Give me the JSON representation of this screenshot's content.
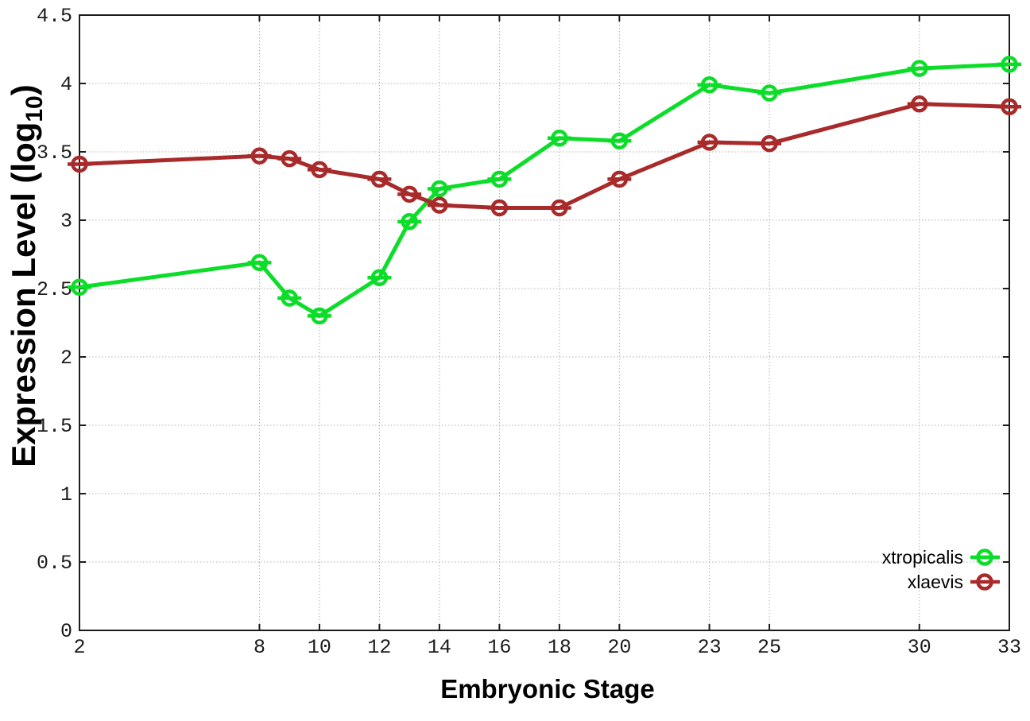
{
  "chart_data": {
    "type": "line",
    "title": "",
    "xlabel": "Embryonic Stage",
    "ylabel": "Expression Level (log10)",
    "ylabel_parts": {
      "base": "Expression Level (log",
      "subscript": "10",
      "suffix": ")"
    },
    "xlim": [
      2,
      33
    ],
    "ylim": [
      0,
      4.5
    ],
    "grid": true,
    "legend_position": "inside-bottom-right",
    "x_ticks": [
      2,
      8,
      10,
      12,
      14,
      16,
      18,
      20,
      23,
      25,
      30,
      33
    ],
    "y_ticks": [
      0,
      0.5,
      1,
      1.5,
      2,
      2.5,
      3,
      3.5,
      4,
      4.5
    ],
    "x": [
      2,
      8,
      9,
      10,
      12,
      13,
      14,
      16,
      18,
      20,
      23,
      25,
      30,
      33
    ],
    "series": [
      {
        "name": "xtropicalis",
        "color": "#0cdd28",
        "marker": "open-circle",
        "values": [
          2.51,
          2.69,
          2.43,
          2.3,
          2.58,
          2.99,
          3.23,
          3.3,
          3.6,
          3.58,
          3.99,
          3.93,
          4.11,
          4.14
        ]
      },
      {
        "name": "xlaevis",
        "color": "#a82a2a",
        "marker": "open-circle",
        "values": [
          3.41,
          3.47,
          3.45,
          3.37,
          3.3,
          3.19,
          3.11,
          3.09,
          3.09,
          3.3,
          3.57,
          3.56,
          3.85,
          3.83
        ]
      }
    ],
    "colors": {
      "background": "#ffffff",
      "grid": "#b0b0b0",
      "axis": "#1c1c1c",
      "text": "#000000"
    }
  }
}
